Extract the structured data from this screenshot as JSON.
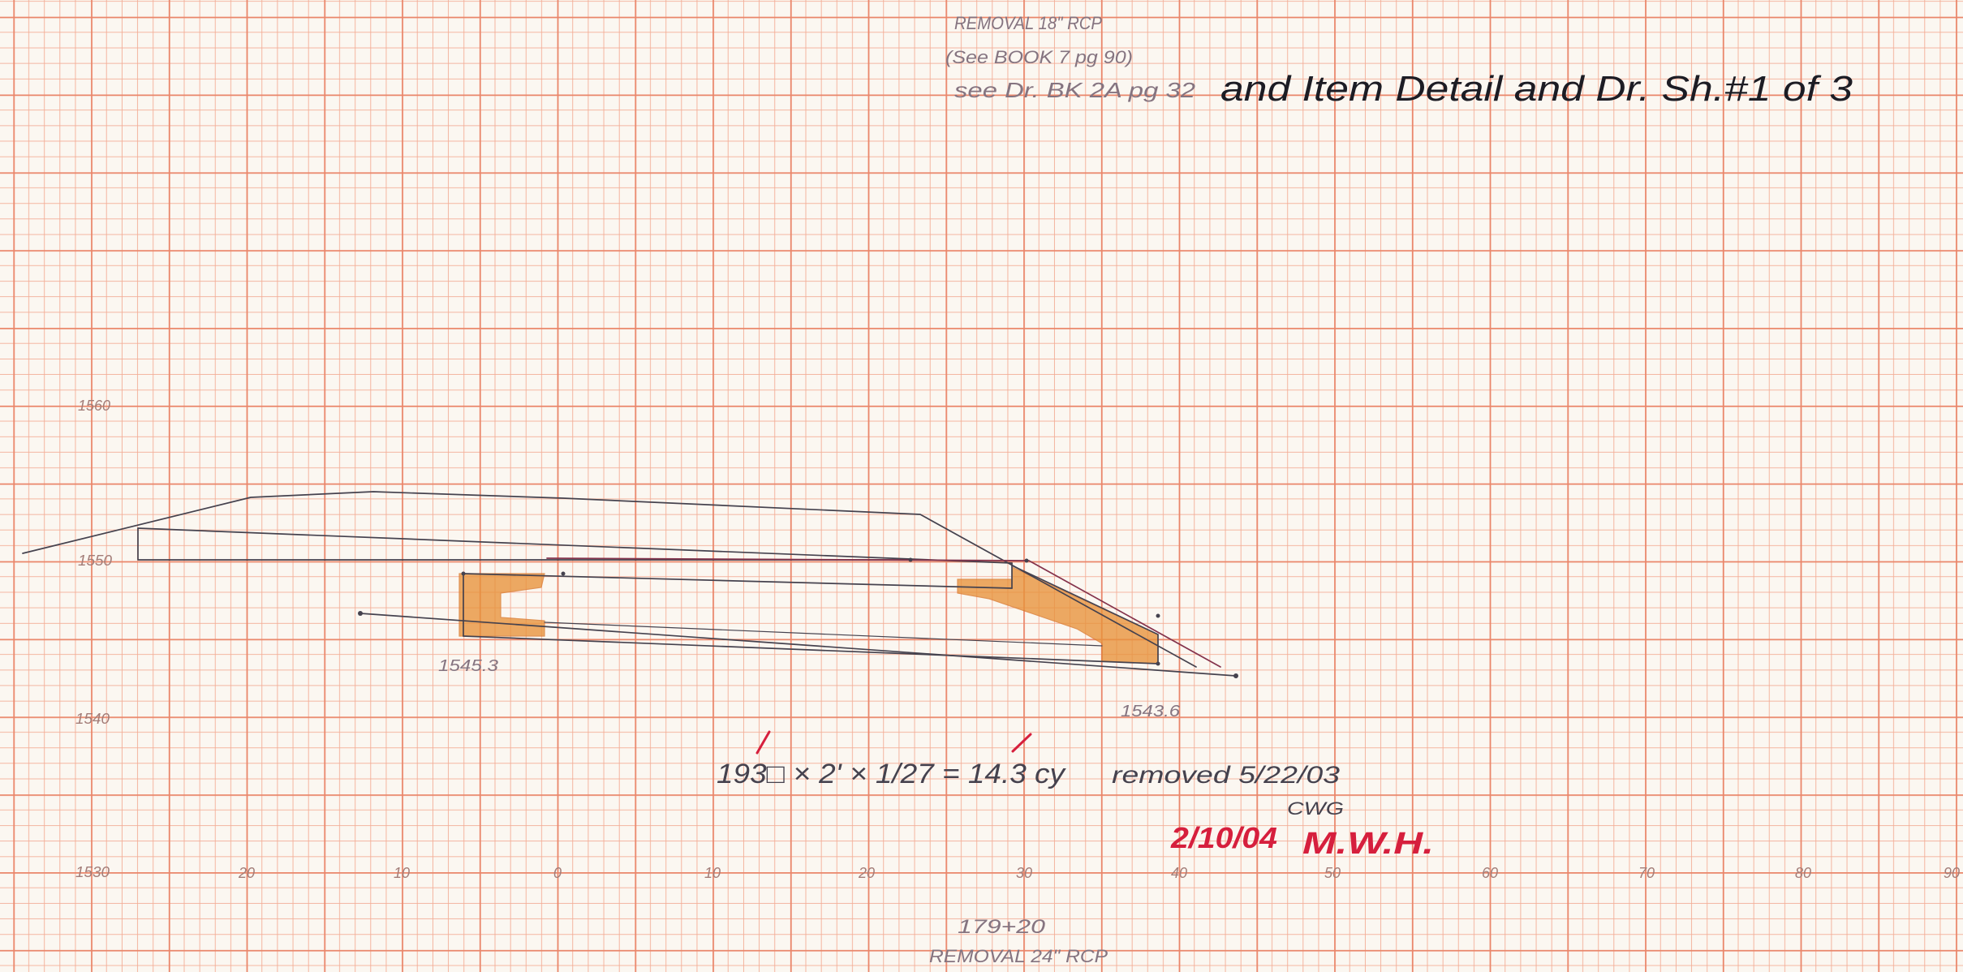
{
  "notes": {
    "removal_18": "REMOVAL 18\" RCP",
    "see_book": "(See BOOK 7 pg 90)",
    "see_drawing_book": "see Dr. BK 2A pg 32",
    "item_detail": "and Item Detail and Dr. Sh.#1 of 3",
    "station": "179+20",
    "removal_24": "REMOVAL 24\" RCP"
  },
  "elevation_labels": [
    "1560",
    "1550",
    "1540",
    "1530"
  ],
  "offset_labels": [
    "20",
    "10",
    "0",
    "10",
    "20",
    "30",
    "40",
    "50",
    "60",
    "70",
    "80",
    "90"
  ],
  "spot_labels": [
    "1545.3",
    "1543.6"
  ],
  "calculation": {
    "formula": "193□ × 2' × 1/27 = 14.3 cy"
  },
  "removal_record": {
    "text": "removed 5/22/03",
    "initials": "CWG"
  },
  "review": {
    "date": "2/10/04",
    "initials": "M.W.H."
  },
  "colors": {
    "paper": "#fbf7f1",
    "grid_thin": "#f3ad96",
    "grid_heavy": "#ea866a",
    "pencil": "#45424e",
    "pencil_text": "#857480",
    "ink": "#1c1c24",
    "maroon": "#84334c",
    "shading": "#e8923a",
    "shading_edge": "#d9782a",
    "axis_text": "#a37d78",
    "review_red": "#d61f3d"
  }
}
